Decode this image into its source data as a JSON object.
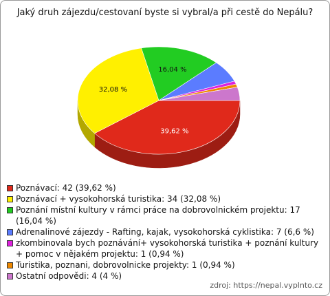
{
  "chart_data": {
    "type": "pie3d",
    "title": "Jaký druh zájezdu/cestovaní byste si vybral/a při cestě do Nepálu?",
    "categories": [
      "Poznávací: 42 (39,62 %)",
      "Poznávací + vysokohorská turistika: 34 (32,08 %)",
      "Poznání místní kultury v rámci práce na dobrovolnickém projektu: 17 (16,04 %)",
      "Adrenalinové zájezdy - Rafting, kajak, vysokohorská cyklistika: 7 (6,6 %)",
      "zkombinovala bych poznávání+ vysokohorská turistika + poznání kultury + pomoc v nějakém projektu: 1 (0,94 %)",
      "Turistika, poznani, dobrovolnicke projekty: 1 (0,94 %)",
      "Ostatní odpovědi: 4 (4 %)"
    ],
    "values": [
      39.62,
      32.08,
      16.04,
      6.6,
      0.94,
      0.94,
      4
    ],
    "value_labels": [
      "39,62 %",
      "32,08 %",
      "16,04 %",
      null,
      null,
      null,
      null
    ],
    "colors": [
      "#e0291b",
      "#fff000",
      "#22cc22",
      "#5b7cff",
      "#dd22dd",
      "#ee8800",
      "#cc77cc"
    ],
    "source": "zdroj: https://nepal.vyplnto.cz"
  }
}
